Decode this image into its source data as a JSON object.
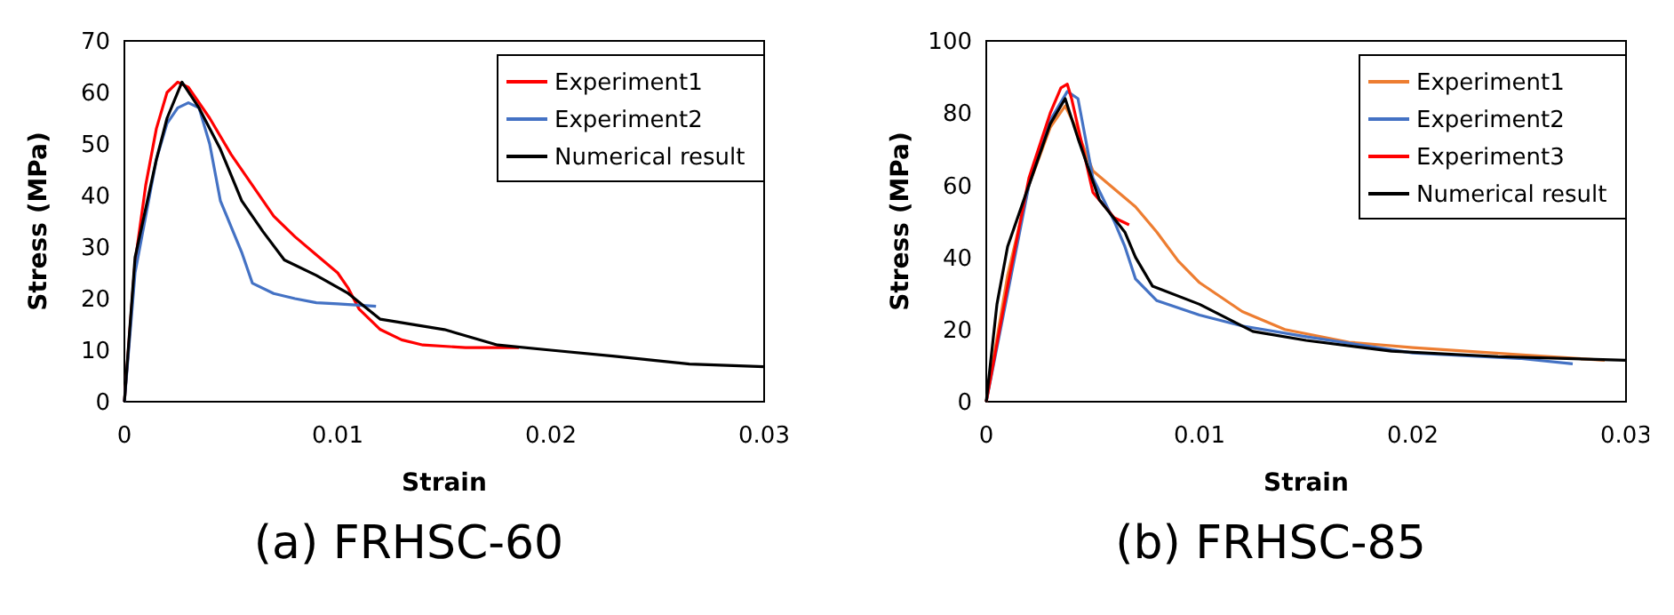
{
  "chart_data": [
    {
      "type": "line",
      "title": "(a) FRHSC-60",
      "xlabel": "Strain",
      "ylabel": "Stress (MPa)",
      "xlim": [
        0,
        0.03
      ],
      "ylim": [
        0,
        70
      ],
      "xticks": [
        0,
        0.01,
        0.02,
        0.03
      ],
      "yticks": [
        0,
        10,
        20,
        30,
        40,
        50,
        60,
        70
      ],
      "grid": false,
      "legend": "top right",
      "line_style": "solid",
      "series": [
        {
          "name": "Experiment1",
          "color": "#ff0000",
          "x": [
            0,
            0.0005,
            0.001,
            0.0015,
            0.002,
            0.0025,
            0.003,
            0.004,
            0.005,
            0.006,
            0.007,
            0.008,
            0.009,
            0.01,
            0.0105,
            0.011,
            0.012,
            0.013,
            0.014,
            0.016,
            0.0185
          ],
          "values": [
            0,
            27,
            42,
            53,
            60,
            62,
            61,
            55,
            48,
            42,
            36,
            32,
            28.5,
            25,
            22,
            18,
            14,
            12,
            11,
            10.5,
            10.5
          ]
        },
        {
          "name": "Experiment2",
          "color": "#4472c4",
          "x": [
            0,
            0.0005,
            0.001,
            0.0015,
            0.002,
            0.0025,
            0.003,
            0.0035,
            0.004,
            0.0045,
            0.005,
            0.0055,
            0.006,
            0.007,
            0.008,
            0.009,
            0.01,
            0.0118
          ],
          "values": [
            0,
            25,
            36,
            47,
            54,
            57,
            58,
            57,
            50,
            39,
            34,
            29,
            23,
            21,
            20,
            19.2,
            19,
            18.5
          ]
        },
        {
          "name": "Numerical result",
          "color": "#000000",
          "x": [
            0,
            0.0005,
            0.0015,
            0.002,
            0.0027,
            0.0035,
            0.0045,
            0.0055,
            0.0065,
            0.0075,
            0.009,
            0.0105,
            0.012,
            0.015,
            0.0175,
            0.02,
            0.023,
            0.0265,
            0.03
          ],
          "values": [
            0,
            28,
            47,
            55,
            62,
            57,
            49,
            39,
            33,
            27.5,
            24.5,
            21,
            16,
            14,
            11,
            10,
            8.8,
            7.3,
            6.8
          ]
        }
      ]
    },
    {
      "type": "line",
      "title": "(b) FRHSC-85",
      "xlabel": "Strain",
      "ylabel": "Stress (MPa)",
      "xlim": [
        0,
        0.03
      ],
      "ylim": [
        0,
        100
      ],
      "xticks": [
        0,
        0.01,
        0.02,
        0.03
      ],
      "yticks": [
        0,
        20,
        40,
        60,
        80,
        100
      ],
      "grid": false,
      "legend": "top right",
      "line_style": "solid",
      "series": [
        {
          "name": "Experiment1",
          "color": "#ed7d31",
          "x": [
            0,
            0.001,
            0.002,
            0.003,
            0.0037,
            0.0042,
            0.005,
            0.006,
            0.007,
            0.008,
            0.009,
            0.01,
            0.012,
            0.014,
            0.017,
            0.02,
            0.025,
            0.029
          ],
          "values": [
            0,
            35,
            60,
            76,
            82,
            76,
            64,
            59,
            54,
            47,
            39,
            33,
            25,
            20,
            16.5,
            15,
            13,
            11.5
          ]
        },
        {
          "name": "Experiment2",
          "color": "#4472c4",
          "x": [
            0,
            0.001,
            0.002,
            0.003,
            0.0038,
            0.0043,
            0.005,
            0.006,
            0.0065,
            0.007,
            0.008,
            0.01,
            0.012,
            0.015,
            0.02,
            0.025,
            0.0275
          ],
          "values": [
            0,
            30,
            60,
            78,
            86,
            84,
            62,
            50,
            43,
            34,
            28,
            24,
            21,
            18,
            13.5,
            12,
            10.5
          ]
        },
        {
          "name": "Experiment3",
          "color": "#ff0000",
          "x": [
            0,
            0.001,
            0.002,
            0.003,
            0.0035,
            0.0038,
            0.004,
            0.005,
            0.006,
            0.0067
          ],
          "values": [
            0,
            32,
            62,
            80,
            87,
            88,
            84,
            58,
            51,
            49
          ]
        },
        {
          "name": "Numerical result",
          "color": "#000000",
          "x": [
            0,
            0.0005,
            0.001,
            0.002,
            0.003,
            0.0037,
            0.0043,
            0.0053,
            0.0065,
            0.007,
            0.0078,
            0.01,
            0.0125,
            0.015,
            0.019,
            0.024,
            0.03
          ],
          "values": [
            0,
            27,
            43,
            60,
            77,
            84,
            73,
            56,
            47,
            40,
            32,
            27,
            19.5,
            17,
            14,
            12.5,
            11.5
          ]
        }
      ]
    }
  ]
}
